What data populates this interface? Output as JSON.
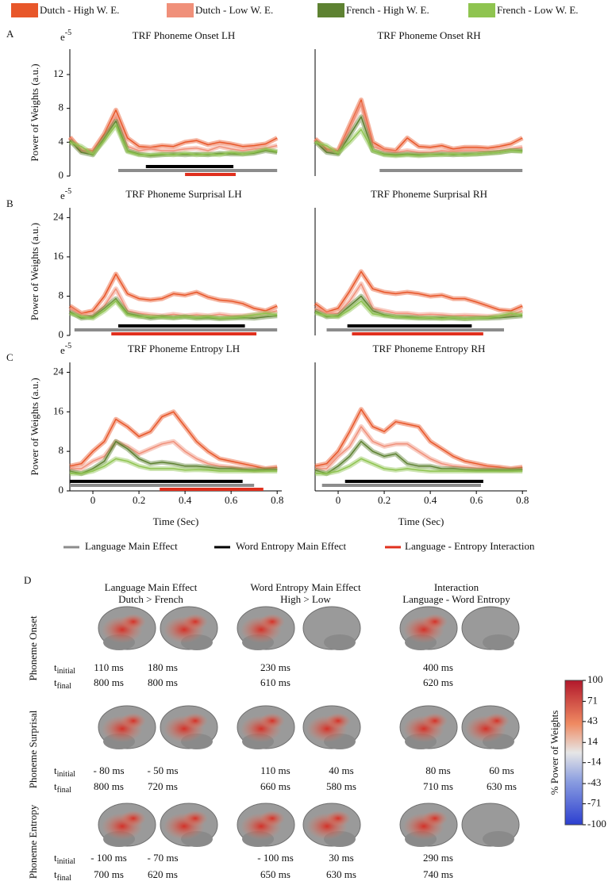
{
  "panels": [
    "A",
    "B",
    "C",
    "D"
  ],
  "effects": [
    {
      "name": "Language Main Effect",
      "color": "#8c8c8c"
    },
    {
      "name": "Word Entropy Main Effect",
      "color": "#000000"
    },
    {
      "name": "Language - Entropy Interaction",
      "color": "#e0301e"
    }
  ],
  "chart_data": [
    {
      "type": "line",
      "title": "TRF Phoneme Onset LH",
      "ylabel": "Power of Weights (a.u.)",
      "scale_base": "e",
      "scale_exp": "-5",
      "xlim": [
        -0.1,
        0.82
      ],
      "ylim": [
        0,
        15
      ],
      "yticks": [
        0,
        4,
        8,
        12
      ],
      "x": [
        -0.1,
        -0.05,
        0,
        0.05,
        0.1,
        0.15,
        0.2,
        0.25,
        0.3,
        0.35,
        0.4,
        0.45,
        0.5,
        0.55,
        0.6,
        0.65,
        0.7,
        0.75,
        0.8
      ],
      "series": [
        {
          "name": "Dutch - High W. E.",
          "color": "#e8572a",
          "values": [
            4.6,
            3.0,
            3.0,
            5.0,
            7.8,
            4.5,
            3.5,
            3.4,
            3.6,
            3.5,
            4.0,
            4.2,
            3.7,
            4.0,
            3.8,
            3.5,
            3.6,
            3.8,
            4.5
          ]
        },
        {
          "name": "Dutch - Low W. E.",
          "color": "#f0907a",
          "values": [
            4.5,
            3.0,
            2.8,
            4.5,
            7.0,
            3.5,
            3.0,
            3.2,
            3.0,
            3.0,
            3.2,
            3.3,
            3.0,
            3.5,
            3.2,
            3.0,
            3.2,
            3.3,
            3.6
          ]
        },
        {
          "name": "French - High W. E.",
          "color": "#5e8232",
          "values": [
            4.2,
            2.8,
            2.5,
            4.5,
            6.5,
            3.0,
            2.6,
            2.4,
            2.5,
            2.6,
            2.5,
            2.6,
            2.5,
            2.7,
            2.6,
            2.6,
            2.7,
            3.0,
            2.8
          ]
        },
        {
          "name": "French - Low W. E.",
          "color": "#8fc450",
          "values": [
            4.0,
            3.5,
            2.6,
            4.2,
            6.0,
            2.9,
            2.5,
            2.5,
            2.6,
            2.5,
            2.7,
            2.5,
            2.6,
            2.5,
            2.8,
            2.6,
            2.8,
            3.2,
            2.9
          ]
        }
      ],
      "effect_ranges": [
        [
          0.11,
          0.8
        ],
        [
          0.23,
          0.61
        ],
        [
          0.4,
          0.62
        ]
      ]
    },
    {
      "type": "line",
      "title": "TRF Phoneme Onset RH",
      "xlim": [
        -0.1,
        0.82
      ],
      "ylim": [
        0,
        15
      ],
      "x": [
        -0.1,
        -0.05,
        0,
        0.05,
        0.1,
        0.15,
        0.2,
        0.25,
        0.3,
        0.35,
        0.4,
        0.45,
        0.5,
        0.55,
        0.6,
        0.65,
        0.7,
        0.75,
        0.8
      ],
      "series": [
        {
          "name": "Dutch - High W. E.",
          "color": "#e8572a",
          "values": [
            4.4,
            3.2,
            3.0,
            6.0,
            9.0,
            4.0,
            3.2,
            3.0,
            4.5,
            3.5,
            3.4,
            3.6,
            3.2,
            3.4,
            3.4,
            3.3,
            3.5,
            3.8,
            4.5
          ]
        },
        {
          "name": "Dutch - Low W. E.",
          "color": "#f0907a",
          "values": [
            4.3,
            3.0,
            2.8,
            5.5,
            8.5,
            3.5,
            3.0,
            2.8,
            3.0,
            2.8,
            2.8,
            3.0,
            2.9,
            3.0,
            3.0,
            2.9,
            3.0,
            3.2,
            3.4
          ]
        },
        {
          "name": "French - High W. E.",
          "color": "#5e8232",
          "values": [
            4.1,
            2.8,
            2.6,
            4.8,
            7.0,
            3.0,
            2.6,
            2.5,
            2.6,
            2.5,
            2.5,
            2.6,
            2.5,
            2.6,
            2.6,
            2.7,
            2.8,
            3.0,
            3.0
          ]
        },
        {
          "name": "French - Low W. E.",
          "color": "#8fc450",
          "values": [
            4.0,
            3.6,
            2.7,
            4.0,
            5.5,
            3.0,
            2.5,
            2.4,
            2.5,
            2.4,
            2.5,
            2.5,
            2.6,
            2.5,
            2.6,
            2.7,
            2.8,
            3.0,
            2.9
          ]
        }
      ],
      "effect_ranges": [
        [
          0.18,
          0.8
        ],
        null,
        null
      ]
    },
    {
      "type": "line",
      "title": "TRF Phoneme Surprisal LH",
      "ylabel": "Power of Weights (a.u.)",
      "scale_base": "e",
      "scale_exp": "-5",
      "xlim": [
        -0.1,
        0.82
      ],
      "ylim": [
        0,
        26
      ],
      "yticks": [
        0,
        8,
        16,
        24
      ],
      "x": [
        -0.1,
        -0.05,
        0,
        0.05,
        0.1,
        0.15,
        0.2,
        0.25,
        0.3,
        0.35,
        0.4,
        0.45,
        0.5,
        0.55,
        0.6,
        0.65,
        0.7,
        0.75,
        0.8
      ],
      "series": [
        {
          "name": "Dutch - High W. E.",
          "color": "#e8572a",
          "values": [
            6,
            4.5,
            5,
            8,
            12.5,
            8.5,
            7.5,
            7.2,
            7.5,
            8.5,
            8.2,
            8.8,
            7.8,
            7.2,
            7.0,
            6.5,
            5.5,
            5.0,
            6.0
          ]
        },
        {
          "name": "Dutch - Low W. E.",
          "color": "#f0907a",
          "values": [
            5.5,
            4.2,
            4,
            6,
            9.5,
            5,
            4.5,
            4.2,
            4.0,
            4.3,
            4.0,
            4.2,
            4.0,
            4.3,
            4.0,
            4.0,
            4.2,
            4.5,
            5.0
          ]
        },
        {
          "name": "French - High W. E.",
          "color": "#5e8232",
          "values": [
            4.8,
            3.5,
            3.8,
            5.5,
            7.5,
            4.5,
            4.0,
            3.5,
            3.8,
            3.6,
            3.8,
            3.5,
            3.6,
            3.4,
            3.5,
            3.6,
            3.5,
            3.8,
            4.0
          ]
        },
        {
          "name": "French - Low W. E.",
          "color": "#8fc450",
          "values": [
            4.5,
            3.8,
            3.5,
            5.0,
            7.0,
            4.2,
            3.8,
            3.8,
            3.7,
            3.6,
            3.8,
            3.6,
            3.8,
            3.5,
            3.6,
            3.8,
            4.2,
            4.5,
            4.2
          ]
        }
      ],
      "effect_ranges": [
        [
          -0.08,
          0.8
        ],
        [
          0.11,
          0.66
        ],
        [
          0.08,
          0.71
        ]
      ]
    },
    {
      "type": "line",
      "title": "TRF Phoneme Surprisal RH",
      "xlim": [
        -0.1,
        0.82
      ],
      "ylim": [
        0,
        26
      ],
      "x": [
        -0.1,
        -0.05,
        0,
        0.05,
        0.1,
        0.15,
        0.2,
        0.25,
        0.3,
        0.35,
        0.4,
        0.45,
        0.5,
        0.55,
        0.6,
        0.65,
        0.7,
        0.75,
        0.8
      ],
      "series": [
        {
          "name": "Dutch - High W. E.",
          "color": "#e8572a",
          "values": [
            6.5,
            4.8,
            5.5,
            9,
            13,
            9.5,
            8.8,
            8.5,
            8.8,
            8.5,
            8.0,
            8.2,
            7.5,
            7.5,
            6.8,
            6.0,
            5.2,
            5.0,
            6.0
          ]
        },
        {
          "name": "Dutch - Low W. E.",
          "color": "#f0907a",
          "values": [
            5.5,
            4.5,
            4.5,
            7,
            10.5,
            5.5,
            5.0,
            4.5,
            4.5,
            4.2,
            4.3,
            4.2,
            4.0,
            4.1,
            4.0,
            3.9,
            4.0,
            4.2,
            5.0
          ]
        },
        {
          "name": "French - High W. E.",
          "color": "#5e8232",
          "values": [
            5,
            3.8,
            4,
            6,
            8,
            5,
            4.2,
            3.8,
            3.8,
            3.6,
            3.5,
            3.6,
            3.5,
            3.4,
            3.5,
            3.5,
            3.6,
            3.8,
            4.0
          ]
        },
        {
          "name": "French - Low W. E.",
          "color": "#8fc450",
          "values": [
            4.6,
            4,
            3.8,
            5.2,
            7,
            4.4,
            4,
            3.8,
            3.6,
            3.5,
            3.6,
            3.4,
            3.6,
            3.4,
            3.5,
            3.6,
            4,
            4.5,
            4.2
          ]
        }
      ],
      "effect_ranges": [
        [
          -0.05,
          0.72
        ],
        [
          0.04,
          0.58
        ],
        [
          0.06,
          0.63
        ]
      ]
    },
    {
      "type": "line",
      "title": "TRF Phoneme Entropy LH",
      "ylabel": "Power of Weights (a.u.)",
      "xlabel": "Time (Sec)",
      "scale_base": "e",
      "scale_exp": "-5",
      "xlim": [
        -0.1,
        0.82
      ],
      "ylim": [
        0,
        26
      ],
      "yticks": [
        0,
        8,
        16,
        24
      ],
      "xticks": [
        0,
        0.2,
        0.4,
        0.6,
        0.8
      ],
      "x": [
        -0.1,
        -0.05,
        0,
        0.05,
        0.1,
        0.15,
        0.2,
        0.25,
        0.3,
        0.35,
        0.4,
        0.45,
        0.5,
        0.55,
        0.6,
        0.65,
        0.7,
        0.75,
        0.8
      ],
      "series": [
        {
          "name": "Dutch - High W. E.",
          "color": "#e8572a",
          "values": [
            5,
            5.5,
            8,
            10,
            14.5,
            13,
            11,
            12,
            15,
            16,
            13,
            10,
            8,
            6.5,
            6,
            5.5,
            5,
            4.5,
            4.8
          ]
        },
        {
          "name": "Dutch - Low W. E.",
          "color": "#f0907a",
          "values": [
            4.5,
            4.5,
            6,
            7,
            10,
            9,
            7.5,
            8.5,
            9.5,
            10,
            8,
            6.5,
            5.5,
            5,
            4.8,
            4.5,
            4.2,
            4.3,
            4.5
          ]
        },
        {
          "name": "French - High W. E.",
          "color": "#5e8232",
          "values": [
            4,
            3.5,
            4.5,
            6,
            10,
            8.5,
            6.5,
            5.5,
            5.8,
            5.5,
            5,
            5,
            4.8,
            4.5,
            4.5,
            4.3,
            4.2,
            4.3,
            4.3
          ]
        },
        {
          "name": "French - Low W. E.",
          "color": "#8fc450",
          "values": [
            3.5,
            3.5,
            4,
            5,
            6.5,
            6,
            5,
            4.5,
            4.5,
            4.5,
            4.2,
            4.3,
            4.2,
            4,
            4,
            4,
            4,
            4,
            4
          ]
        }
      ],
      "effect_ranges": [
        [
          -0.1,
          0.7
        ],
        [
          -0.1,
          0.65
        ],
        [
          0.29,
          0.74
        ]
      ]
    },
    {
      "type": "line",
      "title": "TRF Phoneme Entropy RH",
      "xlabel": "Time (Sec)",
      "xlim": [
        -0.1,
        0.82
      ],
      "ylim": [
        0,
        26
      ],
      "xticks": [
        0,
        0.2,
        0.4,
        0.6,
        0.8
      ],
      "x": [
        -0.1,
        -0.05,
        0,
        0.05,
        0.1,
        0.15,
        0.2,
        0.25,
        0.3,
        0.35,
        0.4,
        0.45,
        0.5,
        0.55,
        0.6,
        0.65,
        0.7,
        0.75,
        0.8
      ],
      "series": [
        {
          "name": "Dutch - High W. E.",
          "color": "#e8572a",
          "values": [
            5,
            5.5,
            8,
            12,
            16.5,
            13,
            12,
            14,
            13.5,
            13,
            10,
            8.5,
            7,
            6,
            5.5,
            5,
            4.8,
            4.5,
            4.8
          ]
        },
        {
          "name": "Dutch - Low W. E.",
          "color": "#f0907a",
          "values": [
            4.5,
            4.5,
            7,
            9,
            13,
            10,
            9,
            9.5,
            9.5,
            8,
            6.5,
            5.5,
            5,
            4.8,
            4.6,
            4.5,
            4.3,
            4.3,
            4.5
          ]
        },
        {
          "name": "French - High W. E.",
          "color": "#5e8232",
          "values": [
            4.2,
            3.5,
            5,
            7,
            10,
            8,
            7,
            7.5,
            5.5,
            5,
            5,
            4.5,
            4.5,
            4.3,
            4.2,
            4.2,
            4.2,
            4.2,
            4.3
          ]
        },
        {
          "name": "French - Low W. E.",
          "color": "#8fc450",
          "values": [
            3.5,
            3.5,
            4,
            5,
            6.5,
            5.5,
            4.5,
            4.2,
            4.5,
            4.2,
            4,
            4,
            4,
            4,
            4,
            4,
            4,
            4,
            4
          ]
        }
      ],
      "effect_ranges": [
        [
          -0.07,
          0.62
        ],
        [
          0.03,
          0.63
        ],
        null
      ]
    }
  ],
  "brain_map": {
    "columns": [
      [
        "Language Main Effect",
        "Dutch > French"
      ],
      [
        "Word Entropy Main Effect",
        "High > Low"
      ],
      [
        "Interaction",
        "Language - Word Entropy"
      ]
    ],
    "t_initial": {
      "base": "t",
      "sub": "initial"
    },
    "t_final": {
      "base": "t",
      "sub": "final"
    },
    "rows": [
      {
        "label": "Phoneme Onset",
        "cells": [
          [
            [
              "110 ms",
              "800 ms"
            ],
            [
              "180 ms",
              "800 ms"
            ]
          ],
          [
            [
              "230 ms",
              "610 ms"
            ],
            null
          ],
          [
            [
              "400 ms",
              "620 ms"
            ],
            null
          ]
        ]
      },
      {
        "label": "Phoneme Surprisal",
        "cells": [
          [
            [
              "- 80 ms",
              "800 ms"
            ],
            [
              "- 50 ms",
              "720 ms"
            ]
          ],
          [
            [
              "110 ms",
              "660 ms"
            ],
            [
              "40 ms",
              "580 ms"
            ]
          ],
          [
            [
              "80 ms",
              "710 ms"
            ],
            [
              "60 ms",
              "630 ms"
            ]
          ]
        ]
      },
      {
        "label": "Phoneme Entropy",
        "cells": [
          [
            [
              "- 100 ms",
              "700 ms"
            ],
            [
              "- 70 ms",
              "620 ms"
            ]
          ],
          [
            [
              "- 100 ms",
              "650 ms"
            ],
            [
              "30 ms",
              "630 ms"
            ]
          ],
          [
            [
              "290 ms",
              "740 ms"
            ],
            null
          ]
        ]
      }
    ],
    "colorbar": {
      "label": "% Power of Weights",
      "clim": [
        -100,
        100
      ],
      "ticks": [
        100,
        71,
        43,
        14,
        -14,
        -43,
        -71,
        -100
      ]
    }
  }
}
